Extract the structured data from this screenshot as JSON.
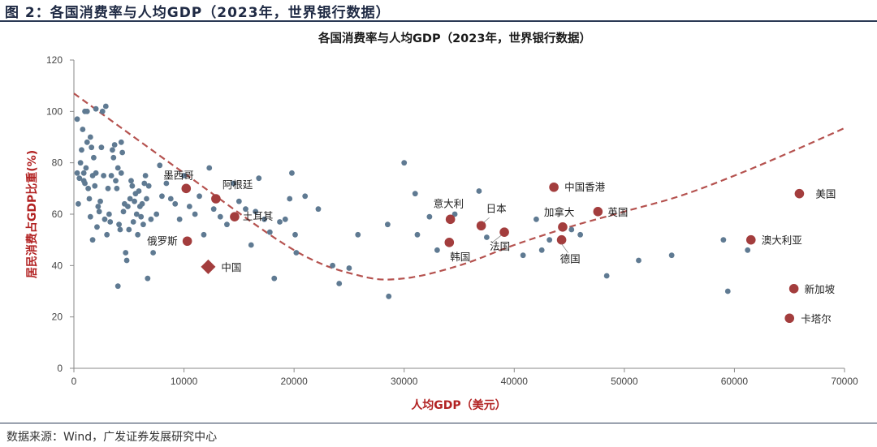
{
  "figure": {
    "header": "图 2：各国消费率与人均GDP（2023年，世界银行数据）",
    "source": "数据来源：Wind，广发证券发展研究中心"
  },
  "colors": {
    "others": "#5f7a92",
    "highlight": "#a33d3d",
    "trend": "#b5524f",
    "axis_title": "#b22222"
  },
  "chart_data": {
    "type": "scatter",
    "title": "各国消费率与人均GDP（2023年，世界银行数据）",
    "xlabel": "人均GDP（美元）",
    "ylabel": "居民消费占GDP比重(%)",
    "xlim": [
      0,
      70000
    ],
    "ylim": [
      0,
      120
    ],
    "xticks": [
      0,
      10000,
      20000,
      30000,
      40000,
      50000,
      60000,
      70000
    ],
    "yticks": [
      0,
      20,
      40,
      60,
      80,
      100,
      120
    ],
    "grid": false,
    "trendline": {
      "type": "polynomial-2",
      "style": "dashed",
      "points": [
        [
          0,
          107
        ],
        [
          10000,
          76
        ],
        [
          20000,
          46
        ],
        [
          26000,
          36
        ],
        [
          30000,
          35
        ],
        [
          35000,
          40
        ],
        [
          40000,
          48
        ],
        [
          45000,
          55
        ],
        [
          50000,
          61
        ],
        [
          55000,
          67
        ],
        [
          60000,
          75
        ],
        [
          65000,
          84
        ],
        [
          70000,
          93.5
        ]
      ]
    },
    "highlighted": [
      {
        "name": "美国",
        "x": 65900,
        "y": 68
      },
      {
        "name": "澳大利亚",
        "x": 61500,
        "y": 50
      },
      {
        "name": "新加坡",
        "x": 65400,
        "y": 31
      },
      {
        "name": "卡塔尔",
        "x": 65000,
        "y": 19.5
      },
      {
        "name": "中国香港",
        "x": 43600,
        "y": 70.5
      },
      {
        "name": "英国",
        "x": 47600,
        "y": 61
      },
      {
        "name": "加拿大",
        "x": 44400,
        "y": 55
      },
      {
        "name": "德国",
        "x": 44300,
        "y": 50
      },
      {
        "name": "日本",
        "x": 37000,
        "y": 55.5
      },
      {
        "name": "法国",
        "x": 39100,
        "y": 53
      },
      {
        "name": "意大利",
        "x": 34200,
        "y": 58
      },
      {
        "name": "韩国",
        "x": 34100,
        "y": 49
      },
      {
        "name": "墨西哥",
        "x": 10200,
        "y": 70
      },
      {
        "name": "阿根廷",
        "x": 12900,
        "y": 66
      },
      {
        "name": "土耳其",
        "x": 14600,
        "y": 59
      },
      {
        "name": "俄罗斯",
        "x": 10300,
        "y": 49.5
      },
      {
        "name": "中国",
        "x": 12200,
        "y": 39.5,
        "marker": "diamond"
      }
    ],
    "others": [
      [
        300,
        97
      ],
      [
        300,
        76
      ],
      [
        400,
        64
      ],
      [
        500,
        74
      ],
      [
        600,
        80
      ],
      [
        700,
        85
      ],
      [
        800,
        93
      ],
      [
        900,
        76
      ],
      [
        900,
        73
      ],
      [
        1000,
        100
      ],
      [
        1000,
        72
      ],
      [
        1100,
        78
      ],
      [
        1200,
        88
      ],
      [
        1200,
        100
      ],
      [
        1300,
        70
      ],
      [
        1400,
        66
      ],
      [
        1500,
        90
      ],
      [
        1500,
        59
      ],
      [
        1600,
        86
      ],
      [
        1700,
        50
      ],
      [
        1700,
        75
      ],
      [
        1800,
        82
      ],
      [
        1900,
        71
      ],
      [
        2000,
        101
      ],
      [
        2000,
        76
      ],
      [
        2100,
        55
      ],
      [
        2200,
        63
      ],
      [
        2300,
        61
      ],
      [
        2400,
        65
      ],
      [
        2500,
        86
      ],
      [
        2600,
        100
      ],
      [
        2700,
        75
      ],
      [
        2800,
        58
      ],
      [
        2900,
        102
      ],
      [
        3000,
        52
      ],
      [
        3100,
        70
      ],
      [
        3200,
        60
      ],
      [
        3300,
        57
      ],
      [
        3400,
        75
      ],
      [
        3500,
        85
      ],
      [
        3600,
        82
      ],
      [
        3700,
        87
      ],
      [
        3800,
        73
      ],
      [
        3900,
        70
      ],
      [
        4000,
        32
      ],
      [
        4000,
        78
      ],
      [
        4100,
        56
      ],
      [
        4200,
        54
      ],
      [
        4300,
        88
      ],
      [
        4300,
        76
      ],
      [
        4400,
        84
      ],
      [
        4500,
        61
      ],
      [
        4600,
        64
      ],
      [
        4700,
        45
      ],
      [
        4800,
        42
      ],
      [
        4900,
        63
      ],
      [
        5000,
        54
      ],
      [
        5100,
        66
      ],
      [
        5200,
        73
      ],
      [
        5300,
        71
      ],
      [
        5400,
        57
      ],
      [
        5500,
        65
      ],
      [
        5600,
        68
      ],
      [
        5700,
        60
      ],
      [
        5800,
        52
      ],
      [
        5900,
        69
      ],
      [
        6000,
        63
      ],
      [
        6100,
        59
      ],
      [
        6200,
        64
      ],
      [
        6300,
        56
      ],
      [
        6400,
        72
      ],
      [
        6500,
        75
      ],
      [
        6600,
        66
      ],
      [
        6700,
        35
      ],
      [
        6800,
        71
      ],
      [
        7000,
        58
      ],
      [
        7200,
        45
      ],
      [
        7500,
        60
      ],
      [
        7800,
        79
      ],
      [
        8000,
        67
      ],
      [
        8400,
        72
      ],
      [
        8800,
        66
      ],
      [
        9200,
        64
      ],
      [
        9600,
        58
      ],
      [
        10000,
        75
      ],
      [
        10500,
        63
      ],
      [
        11000,
        60
      ],
      [
        11400,
        67
      ],
      [
        11800,
        52
      ],
      [
        12300,
        78
      ],
      [
        12700,
        62
      ],
      [
        13300,
        59
      ],
      [
        13900,
        56
      ],
      [
        14500,
        72
      ],
      [
        15000,
        65
      ],
      [
        15600,
        62
      ],
      [
        16100,
        48
      ],
      [
        16500,
        61
      ],
      [
        16800,
        74
      ],
      [
        17300,
        58
      ],
      [
        17800,
        53
      ],
      [
        18200,
        35
      ],
      [
        18700,
        57
      ],
      [
        19200,
        58
      ],
      [
        19600,
        66
      ],
      [
        19800,
        76
      ],
      [
        20100,
        52
      ],
      [
        20200,
        45
      ],
      [
        21000,
        67
      ],
      [
        22200,
        62
      ],
      [
        23500,
        40
      ],
      [
        24100,
        33
      ],
      [
        25000,
        39
      ],
      [
        25800,
        52
      ],
      [
        28600,
        28
      ],
      [
        28500,
        56
      ],
      [
        30000,
        80
      ],
      [
        31000,
        68
      ],
      [
        31200,
        52
      ],
      [
        32300,
        59
      ],
      [
        33000,
        46
      ],
      [
        34600,
        60
      ],
      [
        36800,
        69
      ],
      [
        37500,
        51
      ],
      [
        40800,
        44
      ],
      [
        42000,
        58
      ],
      [
        42500,
        46
      ],
      [
        43200,
        50
      ],
      [
        45200,
        54
      ],
      [
        46000,
        52
      ],
      [
        48400,
        36
      ],
      [
        51300,
        42
      ],
      [
        54300,
        44
      ],
      [
        59000,
        50
      ],
      [
        59400,
        30
      ],
      [
        61200,
        46
      ]
    ]
  }
}
